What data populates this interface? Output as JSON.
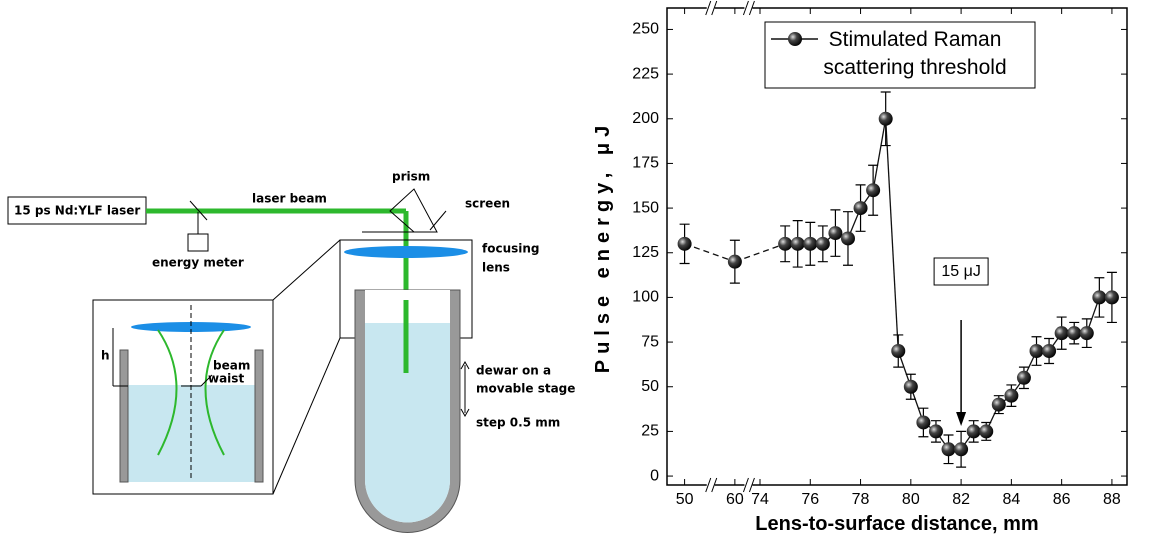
{
  "diagram": {
    "laser": "15 ps Nd:YLF laser",
    "beam": "laser beam",
    "prism": "prism",
    "screen": "screen",
    "lens": [
      "focusing",
      "lens"
    ],
    "meter": "energy meter",
    "h": "h",
    "waist": [
      "beam",
      "waist"
    ],
    "dewar": [
      "dewar on a",
      "movable stage"
    ],
    "step": "step 0.5 mm"
  },
  "chart_data": {
    "type": "scatter",
    "x_label": "Lens-to-surface distance, mm",
    "y_label": "Pulse energy, μJ",
    "x": [
      50,
      60,
      75,
      75.5,
      76,
      76.5,
      77,
      77.5,
      78,
      78.5,
      79,
      79.5,
      80,
      80.5,
      81,
      81.5,
      82,
      82.5,
      83,
      83.5,
      84,
      84.5,
      85,
      85.5,
      86,
      86.5,
      87,
      87.5,
      88
    ],
    "series": [
      {
        "name": "Stimulated Raman scattering threshold",
        "color": "#111111",
        "values": [
          130,
          120,
          130,
          130,
          130,
          130,
          136,
          133,
          150,
          160,
          200,
          70,
          50,
          30,
          25,
          15,
          15,
          25,
          25,
          40,
          45,
          55,
          70,
          70,
          80,
          80,
          80,
          100,
          100
        ],
        "errors": [
          11,
          12,
          10,
          13,
          12,
          10,
          13,
          15,
          13,
          14,
          15,
          9,
          7,
          8,
          6,
          8,
          10,
          6,
          5,
          5,
          6,
          6,
          8,
          7,
          9,
          6,
          8,
          11,
          14
        ]
      }
    ],
    "xlim": [
      49.3,
      88.6
    ],
    "xbreaks": [
      [
        51,
        59
      ],
      [
        60.5,
        73.5
      ]
    ],
    "xticks": [
      50,
      60,
      74,
      76,
      78,
      80,
      82,
      84,
      86,
      88
    ],
    "ylim": [
      -5,
      262
    ],
    "yticks": [
      0,
      25,
      50,
      75,
      100,
      125,
      150,
      175,
      200,
      225,
      250
    ],
    "legend": "top",
    "annotation": {
      "text": "15 μJ",
      "x": 82
    }
  }
}
